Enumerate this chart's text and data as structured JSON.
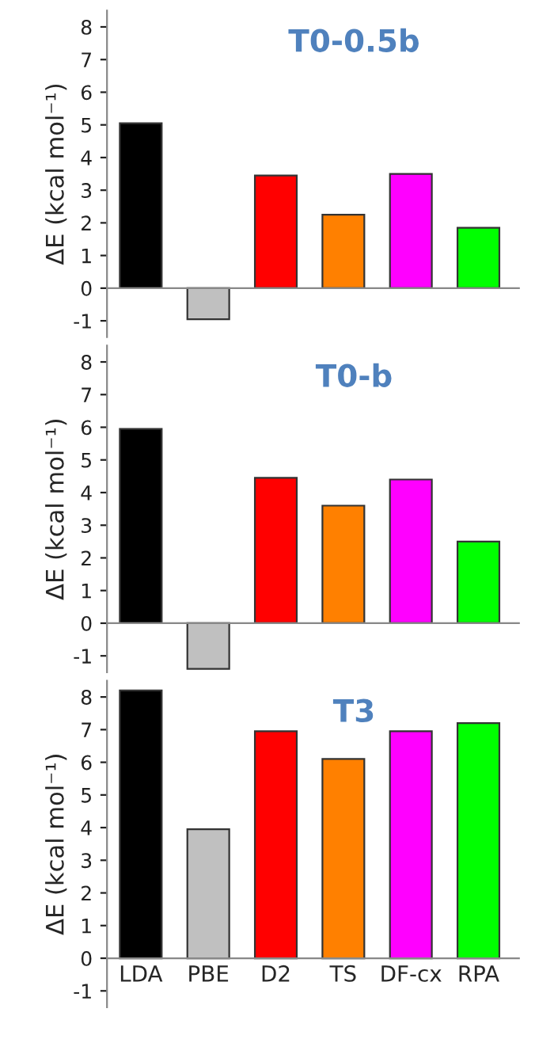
{
  "chart_data": [
    {
      "type": "bar",
      "title": "T0-0.5b",
      "ylabel": "ΔE (kcal mol⁻¹)",
      "categories": [
        null,
        null,
        null,
        null,
        null,
        null
      ],
      "values": [
        5.05,
        -0.95,
        3.45,
        2.25,
        3.5,
        1.85
      ],
      "colors": [
        "#000000",
        "#c0c0c0",
        "#ff0000",
        "#ff8000",
        "#ff00ff",
        "#00ff00"
      ],
      "ylim": [
        -1.5,
        8.5
      ],
      "yticks": [
        -1,
        0,
        1,
        2,
        3,
        4,
        5,
        6,
        7,
        8
      ],
      "tick_labels": "y",
      "legend": false
    },
    {
      "type": "bar",
      "title": "T0-b",
      "ylabel": "ΔE (kcal mol⁻¹)",
      "categories": [
        null,
        null,
        null,
        null,
        null,
        null
      ],
      "values": [
        5.95,
        -1.4,
        4.45,
        3.6,
        4.4,
        2.5
      ],
      "colors": [
        "#000000",
        "#c0c0c0",
        "#ff0000",
        "#ff8000",
        "#ff00ff",
        "#00ff00"
      ],
      "ylim": [
        -1.5,
        8.5
      ],
      "yticks": [
        -1,
        0,
        1,
        2,
        3,
        4,
        5,
        6,
        7,
        8
      ],
      "tick_labels": "y",
      "legend": false
    },
    {
      "type": "bar",
      "title": "T3",
      "ylabel": "ΔE (kcal mol⁻¹)",
      "categories": [
        "LDA",
        "PBE",
        "D2",
        "TS",
        "DF-cx",
        "RPA"
      ],
      "values": [
        8.2,
        3.95,
        6.95,
        6.1,
        6.95,
        7.2
      ],
      "colors": [
        "#000000",
        "#c0c0c0",
        "#ff0000",
        "#ff8000",
        "#ff00ff",
        "#00ff00"
      ],
      "ylim": [
        -1.5,
        8.5
      ],
      "yticks": [
        -1,
        0,
        1,
        2,
        3,
        4,
        5,
        6,
        7,
        8
      ],
      "legend": false
    }
  ]
}
